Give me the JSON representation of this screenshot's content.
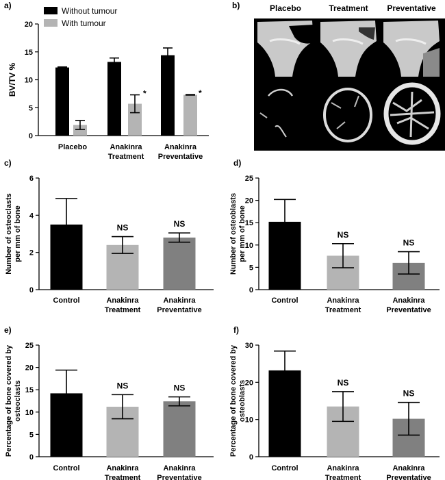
{
  "chart_data": [
    {
      "panel": "a)",
      "type": "bar",
      "categories": [
        [
          "Placebo"
        ],
        [
          "Anakinra",
          "Treatment"
        ],
        [
          "Anakinra",
          "Preventative"
        ]
      ],
      "series": [
        {
          "name": "Without tumour",
          "color": "#000000",
          "values": [
            12.2,
            13.2,
            14.4
          ],
          "errors": [
            0.1,
            0.7,
            1.3
          ]
        },
        {
          "name": "With tumour",
          "color": "#b4b4b4",
          "values": [
            1.9,
            5.7,
            7.3
          ],
          "errors": [
            0.8,
            1.6,
            0.05
          ]
        }
      ],
      "annotations": [
        "",
        "*",
        "*"
      ],
      "ylabel": "BV/TV %",
      "ylim": [
        0,
        20
      ],
      "yticks": [
        "0",
        "5",
        "10",
        "15",
        "20"
      ]
    },
    {
      "panel": "c)",
      "type": "bar",
      "categories": [
        [
          "Control"
        ],
        [
          "Anakinra",
          "Treatment"
        ],
        [
          "Anakinra",
          "Preventative"
        ]
      ],
      "values": [
        3.5,
        2.4,
        2.8
      ],
      "errors": [
        1.4,
        0.45,
        0.25
      ],
      "colors": [
        "#000000",
        "#b4b4b4",
        "#808080"
      ],
      "annotations": [
        "",
        "NS",
        "NS"
      ],
      "ylabel": [
        "Number of osteoclasts",
        "per mm of bone"
      ],
      "ylim": [
        0,
        6
      ],
      "yticks": [
        "0",
        "2",
        "4",
        "6"
      ]
    },
    {
      "panel": "d)",
      "type": "bar",
      "categories": [
        [
          "Control"
        ],
        [
          "Anakinra",
          "Treatment"
        ],
        [
          "Anakinra",
          "Preventative"
        ]
      ],
      "values": [
        15.2,
        7.6,
        6.0
      ],
      "errors": [
        5.0,
        2.7,
        2.5
      ],
      "colors": [
        "#000000",
        "#b4b4b4",
        "#808080"
      ],
      "annotations": [
        "",
        "NS",
        "NS"
      ],
      "ylabel": [
        "Number of osteoblasts",
        "per mm of bone"
      ],
      "ylim": [
        0,
        25
      ],
      "yticks": [
        "0",
        "5",
        "10",
        "15",
        "20",
        "25"
      ]
    },
    {
      "panel": "e)",
      "type": "bar",
      "categories": [
        [
          "Control"
        ],
        [
          "Anakinra",
          "Treatment"
        ],
        [
          "Anakinra",
          "Preventative"
        ]
      ],
      "values": [
        14.2,
        11.2,
        12.4
      ],
      "errors": [
        5.2,
        2.7,
        1.0
      ],
      "colors": [
        "#000000",
        "#b4b4b4",
        "#808080"
      ],
      "annotations": [
        "",
        "NS",
        "NS"
      ],
      "ylabel": [
        "Percentage of bone covered by",
        "osteoclasts"
      ],
      "ylim": [
        0,
        25
      ],
      "yticks": [
        "0",
        "5",
        "10",
        "15",
        "20",
        "25"
      ]
    },
    {
      "panel": "f)",
      "type": "bar",
      "categories": [
        [
          "Control"
        ],
        [
          "Anakinra",
          "Treatment"
        ],
        [
          "Anakinra",
          "Preventative"
        ]
      ],
      "values": [
        23.2,
        13.5,
        10.2
      ],
      "errors": [
        5.2,
        4.0,
        4.4
      ],
      "colors": [
        "#000000",
        "#b4b4b4",
        "#808080"
      ],
      "annotations": [
        "",
        "NS",
        "NS"
      ],
      "ylabel": [
        "Percentage of bone covered by",
        "osteoblasts"
      ],
      "ylim": [
        0,
        30
      ],
      "yticks": [
        "0",
        "10",
        "20",
        "30"
      ]
    }
  ],
  "images_panel": {
    "panel": "b)",
    "columns": [
      "Placebo",
      "Treatment",
      "Preventative"
    ]
  }
}
